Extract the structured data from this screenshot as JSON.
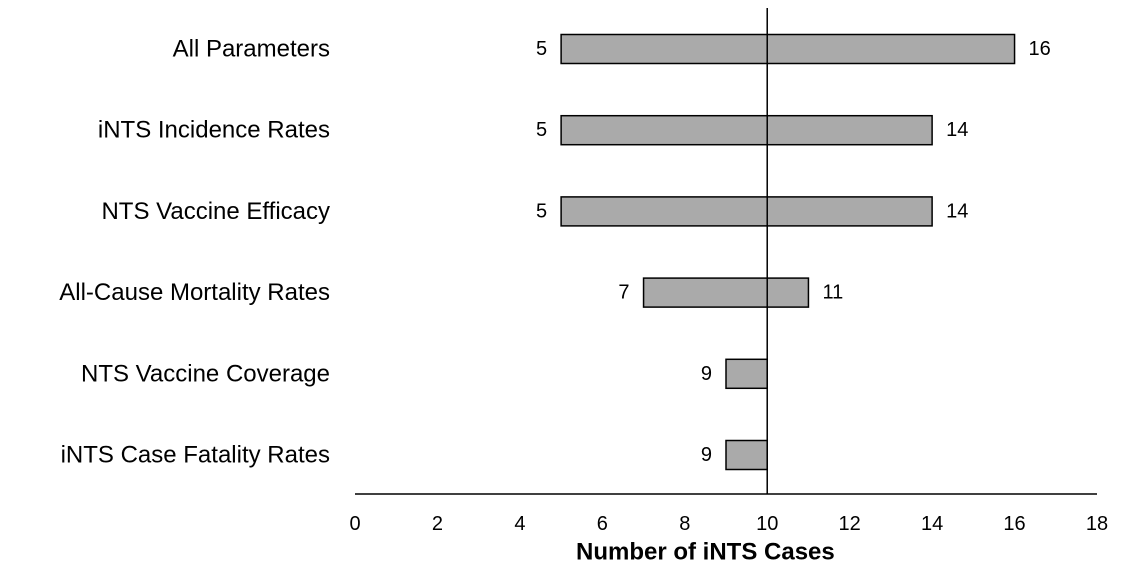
{
  "chart_data": {
    "type": "bar",
    "orientation": "horizontal",
    "subtype": "tornado",
    "title": "",
    "xlabel": "Number of iNTS Cases",
    "ylabel": "",
    "xlim": [
      0,
      18
    ],
    "xticks": [
      "0",
      "2",
      "4",
      "6",
      "8",
      "10",
      "12",
      "14",
      "16",
      "18"
    ],
    "baseline": 10,
    "grid": false,
    "legend": "none",
    "categories": [
      "All Parameters",
      "iNTS Incidence Rates",
      "NTS Vaccine Efficacy",
      "All-Cause Mortality Rates",
      "NTS Vaccine Coverage",
      "iNTS Case Fatality Rates"
    ],
    "low": [
      5,
      5,
      5,
      7,
      9,
      9
    ],
    "high": [
      16,
      14,
      14,
      11,
      null,
      null
    ],
    "low_labels": [
      "5",
      "5",
      "5",
      "7",
      "9",
      "9"
    ],
    "high_labels": [
      "16",
      "14",
      "14",
      "11",
      "",
      ""
    ],
    "colors": {
      "bar_fill": "#aaaaaa",
      "bar_stroke": "#000000",
      "axis": "#000000"
    }
  }
}
